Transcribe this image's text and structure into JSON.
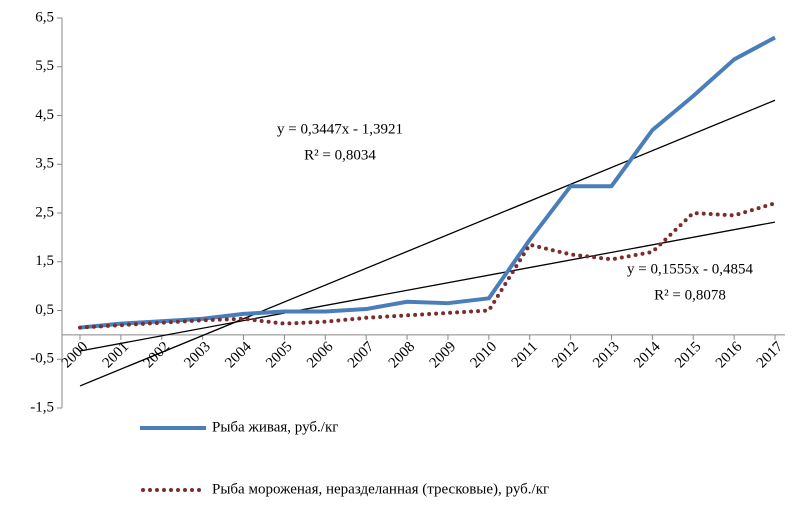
{
  "chart_data": {
    "type": "line",
    "categories": [
      "2000",
      "2001",
      "2002",
      "2003",
      "2004",
      "2005",
      "2006",
      "2007",
      "2008",
      "2009",
      "2010",
      "2011",
      "2012",
      "2013",
      "2014",
      "2015",
      "2016",
      "2017"
    ],
    "series": [
      {
        "name": "Рыба живая, руб./кг",
        "color": "#4a7ebb",
        "style": "solid",
        "values": [
          0.15,
          0.23,
          0.28,
          0.33,
          0.43,
          0.48,
          0.48,
          0.53,
          0.68,
          0.65,
          0.75,
          1.95,
          3.05,
          3.05,
          4.2,
          4.9,
          5.65,
          6.1
        ]
      },
      {
        "name": "Рыба мороженая, неразделанная (тресковые), руб./кг",
        "color": "#7b2c2c",
        "style": "dotted",
        "values": [
          0.15,
          0.2,
          0.25,
          0.3,
          0.33,
          0.23,
          0.27,
          0.35,
          0.4,
          0.45,
          0.5,
          1.85,
          1.65,
          1.55,
          1.7,
          2.5,
          2.45,
          2.7
        ]
      }
    ],
    "trendlines": [
      {
        "slope": 0.3447,
        "intercept": -1.3921,
        "label": "y = 0,3447x - 1,3921",
        "r2_label": "R² = 0,8034"
      },
      {
        "slope": 0.1555,
        "intercept": -0.4854,
        "label": "y = 0,1555x - 0,4854",
        "r2_label": "R² = 0,8078"
      }
    ],
    "ylim": [
      -1.5,
      6.5
    ],
    "yticks": [
      {
        "value": -1.5,
        "label": "-1,5"
      },
      {
        "value": -0.5,
        "label": "-0,5"
      },
      {
        "value": 0.5,
        "label": "0,5"
      },
      {
        "value": 1.5,
        "label": "1,5"
      },
      {
        "value": 2.5,
        "label": "2,5"
      },
      {
        "value": 3.5,
        "label": "3,5"
      },
      {
        "value": 4.5,
        "label": "4,5"
      },
      {
        "value": 5.5,
        "label": "5,5"
      },
      {
        "value": 6.5,
        "label": "6,5"
      }
    ],
    "legend": "bottom"
  }
}
